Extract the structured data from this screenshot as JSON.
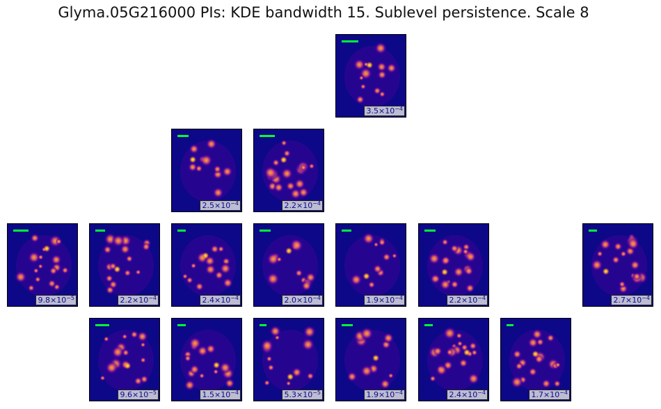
{
  "title": "Glyma.05G216000 PIs: KDE bandwidth 15. Sublevel persistence. Scale 8",
  "colors": {
    "background": "#0d0887",
    "scale_bar": "#00ff33",
    "label_text": "#0d0887",
    "label_box": "#dcdce1",
    "colormap": [
      "#0d0887",
      "#6a00a8",
      "#b12a90",
      "#e16462",
      "#fca636",
      "#f0f921"
    ]
  },
  "chart_data": {
    "type": "heatmap",
    "grid": "off",
    "layout": "4 rows x 8 columns of heatmap panels",
    "panels": [
      {
        "row": 1,
        "col": 5,
        "max_mantissa": "3.5",
        "max_exponent": "−4"
      },
      {
        "row": 2,
        "col": 3,
        "max_mantissa": "2.5",
        "max_exponent": "−4"
      },
      {
        "row": 2,
        "col": 4,
        "max_mantissa": "2.2",
        "max_exponent": "−4"
      },
      {
        "row": 3,
        "col": 1,
        "max_mantissa": "9.8",
        "max_exponent": "−5"
      },
      {
        "row": 3,
        "col": 2,
        "max_mantissa": "2.2",
        "max_exponent": "−4"
      },
      {
        "row": 3,
        "col": 3,
        "max_mantissa": "2.4",
        "max_exponent": "−4"
      },
      {
        "row": 3,
        "col": 4,
        "max_mantissa": "2.0",
        "max_exponent": "−4"
      },
      {
        "row": 3,
        "col": 5,
        "max_mantissa": "1.9",
        "max_exponent": "−4"
      },
      {
        "row": 3,
        "col": 6,
        "max_mantissa": "2.2",
        "max_exponent": "−4"
      },
      {
        "row": 3,
        "col": 8,
        "max_mantissa": "2.7",
        "max_exponent": "−4"
      },
      {
        "row": 4,
        "col": 2,
        "max_mantissa": "9.6",
        "max_exponent": "−5"
      },
      {
        "row": 4,
        "col": 3,
        "max_mantissa": "1.5",
        "max_exponent": "−4"
      },
      {
        "row": 4,
        "col": 4,
        "max_mantissa": "5.3",
        "max_exponent": "−5"
      },
      {
        "row": 4,
        "col": 5,
        "max_mantissa": "1.9",
        "max_exponent": "−4"
      },
      {
        "row": 4,
        "col": 6,
        "max_mantissa": "2.4",
        "max_exponent": "−4"
      },
      {
        "row": 4,
        "col": 7,
        "max_mantissa": "1.7",
        "max_exponent": "−4"
      }
    ]
  }
}
